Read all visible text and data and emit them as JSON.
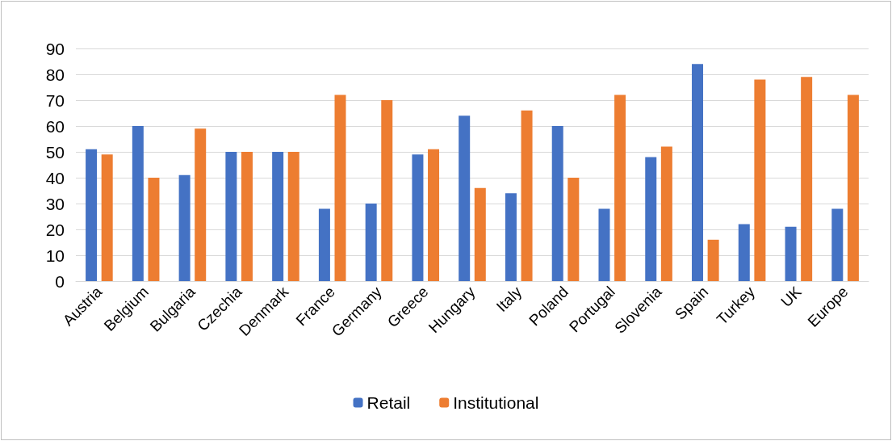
{
  "chart_data": {
    "type": "bar",
    "categories": [
      "Austria",
      "Belgium",
      "Bulgaria",
      "Czechia",
      "Denmark",
      "France",
      "Germany",
      "Greece",
      "Hungary",
      "Italy",
      "Poland",
      "Portugal",
      "Slovenia",
      "Spain",
      "Turkey",
      "UK",
      "Europe"
    ],
    "series": [
      {
        "name": "Retail",
        "color": "#4472c4",
        "values": [
          51,
          60,
          41,
          50,
          50,
          28,
          30,
          49,
          64,
          34,
          60,
          28,
          48,
          84,
          22,
          21,
          28
        ]
      },
      {
        "name": "Institutional",
        "color": "#ed7d31",
        "values": [
          49,
          40,
          59,
          50,
          50,
          72,
          70,
          51,
          36,
          66,
          40,
          72,
          52,
          16,
          78,
          79,
          72
        ]
      }
    ],
    "ylim": [
      0,
      90
    ],
    "yticks": [
      0,
      10,
      20,
      30,
      40,
      50,
      60,
      70,
      80,
      90
    ],
    "grid": "y",
    "legend": "bottom"
  }
}
